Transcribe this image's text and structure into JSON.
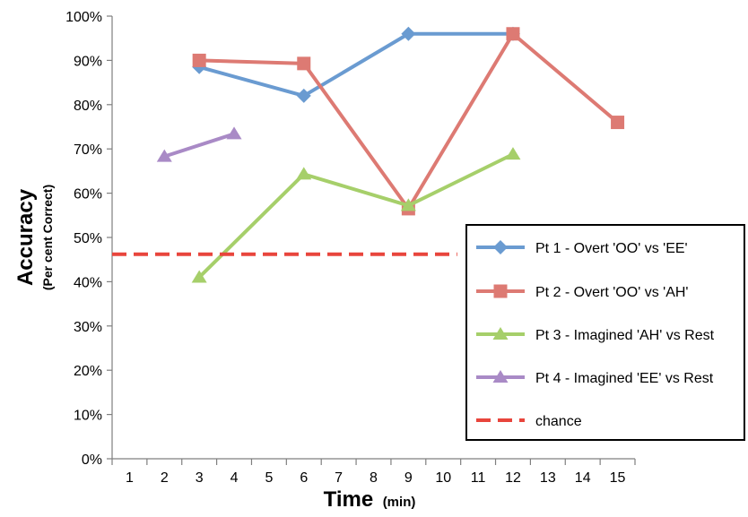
{
  "chart_data": {
    "type": "line",
    "title": "",
    "xlabel": "Time",
    "xlabel_unit": "(min)",
    "ylabel": "Accuracy",
    "ylabel_sub": "(Per cent Correct)",
    "x_ticks": [
      "1",
      "2",
      "3",
      "4",
      "5",
      "6",
      "7",
      "8",
      "9",
      "10",
      "11",
      "12",
      "13",
      "14",
      "15"
    ],
    "y_ticks": [
      "0%",
      "10%",
      "20%",
      "30%",
      "40%",
      "50%",
      "60%",
      "70%",
      "80%",
      "90%",
      "100%"
    ],
    "xlim": [
      0.5,
      15.5
    ],
    "ylim": [
      0,
      100
    ],
    "grid": false,
    "legend_position": "right",
    "series": [
      {
        "name": "Pt 1 - Overt 'OO' vs 'EE'",
        "color": "#6a9bd1",
        "marker": "diamond",
        "points": [
          [
            3,
            88.5
          ],
          [
            6,
            82
          ],
          [
            9,
            96
          ],
          [
            12,
            96
          ]
        ]
      },
      {
        "name": "Pt 2 - Overt 'OO' vs 'AH'",
        "color": "#dd7a73",
        "marker": "square",
        "points": [
          [
            3,
            90
          ],
          [
            6,
            89.3
          ],
          [
            9,
            56.5
          ],
          [
            12,
            96
          ],
          [
            15,
            76
          ]
        ]
      },
      {
        "name": "Pt 3 - Imagined 'AH' vs Rest",
        "color": "#a6cf6a",
        "marker": "triangle",
        "points": [
          [
            3,
            41
          ],
          [
            6,
            64.3
          ],
          [
            9,
            57.2
          ],
          [
            12,
            68.8
          ]
        ]
      },
      {
        "name": "Pt 4 - Imagined 'EE' vs Rest",
        "color": "#a98ac6",
        "marker": "triangle",
        "points": [
          [
            2,
            68.3
          ],
          [
            4,
            73.4
          ]
        ]
      },
      {
        "name": "chance",
        "color": "#e8453c",
        "marker": "none",
        "dashed": true,
        "points": [
          [
            0.5,
            46.2
          ],
          [
            10.4,
            46.2
          ]
        ]
      }
    ]
  }
}
